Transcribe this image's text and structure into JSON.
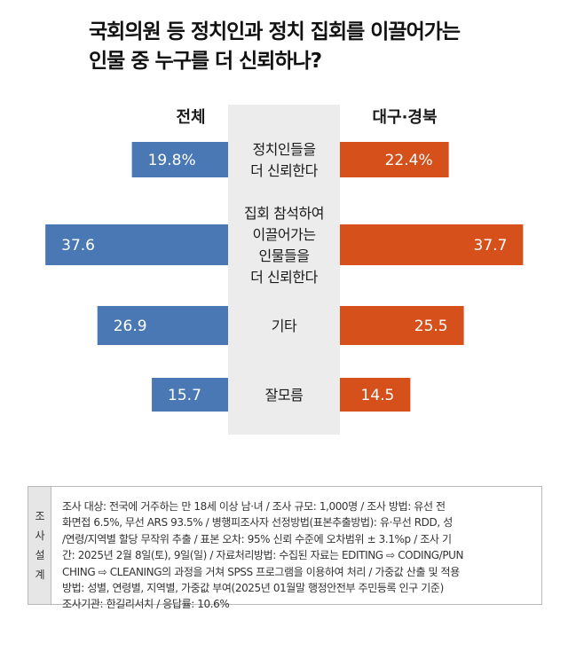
{
  "title": {
    "line1": "국회의원 등 정치인과 정치 집회를 이끌어가는",
    "line2": "인물 중 누구를 더 신뢰하나?"
  },
  "chart_data": {
    "type": "bar",
    "orientation": "horizontal-butterfly",
    "title": "국회의원 등 정치인과 정치 집회를 이끌어가는 인물 중 누구를 더 신뢰하나?",
    "unit": "%",
    "categories": [
      [
        "정치인들을",
        "더 신뢰한다"
      ],
      [
        "집회 참석하여",
        "이끌어가는",
        "인물들을",
        "더 신뢰한다"
      ],
      [
        "기타"
      ],
      [
        "잘모름"
      ]
    ],
    "series": [
      {
        "name": "전체",
        "side": "left",
        "color": "#4a78b5",
        "values": [
          19.8,
          37.6,
          26.9,
          15.7
        ],
        "labels": [
          "19.8%",
          "37.6",
          "26.9",
          "15.7"
        ]
      },
      {
        "name": "대구·경북",
        "side": "right",
        "color": "#d6501c",
        "values": [
          22.4,
          37.7,
          25.5,
          14.5
        ],
        "labels": [
          "22.4%",
          "37.7",
          "25.5",
          "14.5"
        ]
      }
    ],
    "xlim": [
      0,
      40
    ],
    "grid": false,
    "legend": "none"
  },
  "methodology": {
    "label": "조\n사\n설\n계",
    "lines": [
      "조사 대상: 전국에 거주하는 만 18세 이상 남·녀 / 조사 규모: 1,000명 / 조사 방법: 유선 전",
      "화면접 6.5%, 무선 ARS 93.5% / 병행피조사자 선정방법(표본추출방법): 유·무선 RDD, 성",
      "/연령/지역별 할당 무작위 추출 / 표본 오차: 95% 신뢰 수준에 오차범위 ± 3.1%p / 조사 기",
      "간: 2025년 2월 8일(토), 9일(일) / 자료처리방법: 수집된 자료는 EDITING ⇨ CODING/PUN",
      "CHING ⇨ CLEANING의 과정을 거쳐 SPSS 프로그램을 이용하여 처리 / 가중값 산출 및 적용",
      "방법: 성별, 연령별, 지역별, 가중값 부여(2025년 01월말 행정안전부 주민등록 인구 기준)",
      "조사기관: 한길리서치 / 응답률: 10.6%"
    ]
  }
}
